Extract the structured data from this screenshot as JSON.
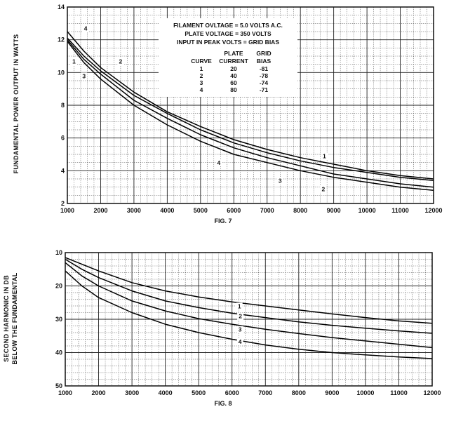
{
  "chart_data": [
    {
      "type": "line",
      "figure_label": "FIG. 7",
      "ylabel": "FUNDAMENTAL POWER OUTPUT IN WATTS",
      "xlim": [
        1000,
        12000
      ],
      "ylim": [
        2,
        14
      ],
      "x_ticks": [
        1000,
        2000,
        3000,
        4000,
        5000,
        6000,
        7000,
        8000,
        9000,
        10000,
        11000,
        12000
      ],
      "y_ticks": [
        2,
        4,
        6,
        8,
        10,
        12,
        14
      ],
      "series": [
        {
          "name": "1",
          "x": [
            1000,
            1500,
            2000,
            3000,
            4000,
            5000,
            6000,
            7000,
            8000,
            9000,
            10000,
            11000,
            12000
          ],
          "y": [
            12.1,
            11.0,
            10.1,
            8.6,
            7.5,
            6.5,
            5.7,
            5.1,
            4.6,
            4.2,
            3.9,
            3.6,
            3.4
          ]
        },
        {
          "name": "2",
          "x": [
            1000,
            1500,
            2000,
            3000,
            4000,
            5000,
            6000,
            7000,
            8000,
            9000,
            10000,
            11000,
            12000
          ],
          "y": [
            12.0,
            10.8,
            9.9,
            8.3,
            7.2,
            6.2,
            5.4,
            4.8,
            4.3,
            3.8,
            3.5,
            3.2,
            3.0
          ]
        },
        {
          "name": "3",
          "x": [
            1000,
            1500,
            2000,
            3000,
            4000,
            5000,
            6000,
            7000,
            8000,
            9000,
            10000,
            11000,
            12000
          ],
          "y": [
            11.9,
            10.6,
            9.6,
            8.0,
            6.8,
            5.8,
            5.0,
            4.5,
            4.0,
            3.6,
            3.3,
            3.0,
            2.8
          ]
        },
        {
          "name": "4",
          "x": [
            1000,
            1500,
            2000,
            3000,
            4000,
            5000,
            6000,
            7000,
            8000,
            9000,
            10000,
            11000,
            12000
          ],
          "y": [
            12.5,
            11.3,
            10.3,
            8.8,
            7.6,
            6.7,
            5.9,
            5.3,
            4.8,
            4.4,
            4.0,
            3.7,
            3.5
          ]
        }
      ],
      "info_box": {
        "lines": [
          "FILAMENT OVLTAGE = 5.0 VOLTS A.C.",
          "PLATE VOLTAGE = 350 VOLTS",
          "INPUT IN PEAK VOLTS = GRID BIAS"
        ],
        "table_header_1": [
          "",
          "PLATE",
          "GRID"
        ],
        "table_header_2": [
          "CURVE",
          "CURRENT",
          "BIAS"
        ],
        "rows": [
          [
            "1",
            "20",
            "-81"
          ],
          [
            "2",
            "40",
            "-78"
          ],
          [
            "3",
            "60",
            "-74"
          ],
          [
            "4",
            "80",
            "-71"
          ]
        ]
      },
      "curve_labels": [
        {
          "text": "4",
          "x": 1550,
          "y": 12.6
        },
        {
          "text": "1",
          "x": 1200,
          "y": 10.6
        },
        {
          "text": "2",
          "x": 2600,
          "y": 10.6
        },
        {
          "text": "3",
          "x": 1500,
          "y": 9.7
        },
        {
          "text": "1",
          "x": 8720,
          "y": 4.8
        },
        {
          "text": "4",
          "x": 5550,
          "y": 4.4
        },
        {
          "text": "3",
          "x": 7390,
          "y": 3.3
        },
        {
          "text": "2",
          "x": 8690,
          "y": 2.8
        }
      ],
      "grid": true
    },
    {
      "type": "line",
      "figure_label": "FIG. 8",
      "ylabel": "SECOND HARMONIC IN DB BELOW THE FUNDAMENTAL",
      "ylabel_lines": [
        "SECOND HARMONIC IN DB",
        "BELOW THE FUNDAMENTAL"
      ],
      "xlim": [
        1000,
        12000
      ],
      "ylim": [
        10,
        50
      ],
      "y_inverted": true,
      "x_ticks": [
        1000,
        2000,
        3000,
        4000,
        5000,
        6000,
        7000,
        8000,
        9000,
        10000,
        11000,
        12000
      ],
      "x_tick_labels": [
        "1000",
        "2000",
        "3000",
        "4000",
        "5000",
        "6000",
        "7000",
        "8000",
        "9000",
        "10000",
        "11000",
        "12000"
      ],
      "y_ticks": [
        10,
        20,
        30,
        40,
        50
      ],
      "series": [
        {
          "name": "1",
          "x": [
            1000,
            1500,
            2000,
            3000,
            4000,
            5000,
            6000,
            7000,
            8000,
            9000,
            10000,
            11000,
            12000
          ],
          "y": [
            11.5,
            13.5,
            15.5,
            19.0,
            21.5,
            23.3,
            24.8,
            26.0,
            27.2,
            28.4,
            29.5,
            30.5,
            31.2
          ]
        },
        {
          "name": "2",
          "x": [
            1000,
            1500,
            2000,
            3000,
            4000,
            5000,
            6000,
            7000,
            8000,
            9000,
            10000,
            11000,
            12000
          ],
          "y": [
            12.0,
            15.0,
            17.5,
            21.5,
            24.5,
            26.5,
            28.2,
            29.5,
            30.8,
            31.8,
            32.7,
            33.5,
            34.2
          ]
        },
        {
          "name": "3",
          "x": [
            1000,
            1500,
            2000,
            3000,
            4000,
            5000,
            6000,
            7000,
            8000,
            9000,
            10000,
            11000,
            12000
          ],
          "y": [
            13.0,
            17.0,
            20.0,
            24.5,
            27.5,
            29.8,
            31.5,
            33.0,
            34.3,
            35.5,
            36.5,
            37.5,
            38.5
          ]
        },
        {
          "name": "4",
          "x": [
            1000,
            1500,
            2000,
            3000,
            4000,
            5000,
            6000,
            7000,
            8000,
            9000,
            10000,
            11000,
            12000
          ],
          "y": [
            15.5,
            20.0,
            23.5,
            28.0,
            31.5,
            34.0,
            36.0,
            37.7,
            39.0,
            40.0,
            40.7,
            41.3,
            41.8
          ]
        }
      ],
      "curve_labels": [
        {
          "text": "1",
          "x": 6220,
          "y": 26.5
        },
        {
          "text": "2",
          "x": 6250,
          "y": 29.5
        },
        {
          "text": "3",
          "x": 6240,
          "y": 33.5
        },
        {
          "text": "4",
          "x": 6240,
          "y": 37.2
        }
      ],
      "grid": true
    }
  ]
}
